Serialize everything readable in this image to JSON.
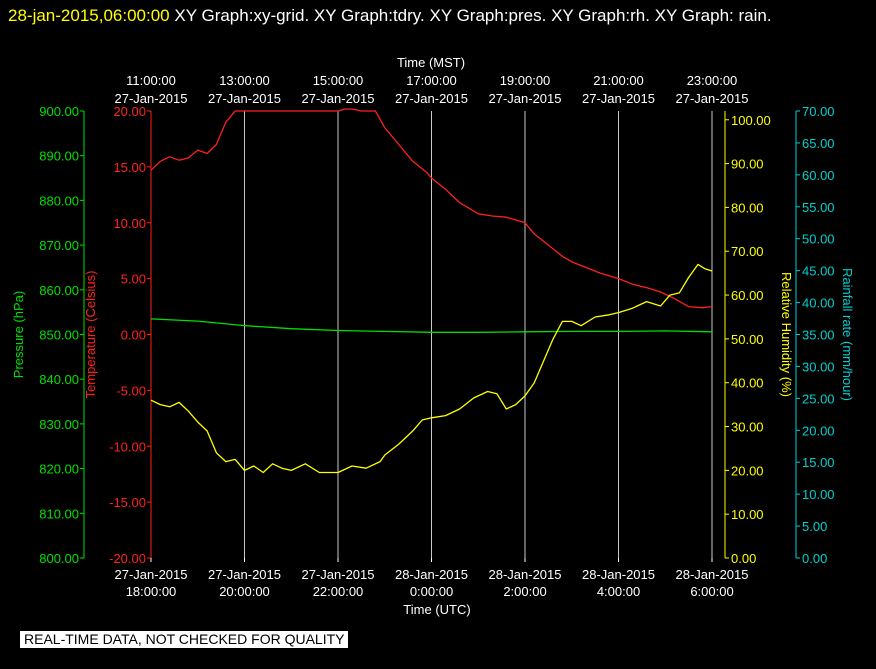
{
  "header": {
    "timestamp": "28-jan-2015,06:00:00",
    "graph_titles": "XY Graph:xy-grid.  XY Graph:tdry.  XY Graph:pres.  XY Graph:rh.  XY Graph: rain."
  },
  "footer": {
    "quality_notice": "REAL-TIME DATA, NOT CHECKED FOR QUALITY"
  },
  "colors": {
    "temperature": "#ff2020",
    "pressure": "#00e000",
    "humidity": "#ffff00",
    "rainfall": "#00d0d0",
    "grid": "#c8c8c8",
    "axis_text": "#ffffff"
  },
  "chart_data": {
    "type": "line",
    "top_axis": {
      "label": "Time (MST)",
      "ticks": [
        {
          "time": "11:00:00",
          "date": "27-Jan-2015"
        },
        {
          "time": "13:00:00",
          "date": "27-Jan-2015"
        },
        {
          "time": "15:00:00",
          "date": "27-Jan-2015"
        },
        {
          "time": "17:00:00",
          "date": "27-Jan-2015"
        },
        {
          "time": "19:00:00",
          "date": "27-Jan-2015"
        },
        {
          "time": "21:00:00",
          "date": "27-Jan-2015"
        },
        {
          "time": "23:00:00",
          "date": "27-Jan-2015"
        }
      ]
    },
    "bottom_axis": {
      "label": "Time (UTC)",
      "range_hours": [
        18,
        30
      ],
      "ticks": [
        {
          "date": "27-Jan-2015",
          "time": "18:00:00"
        },
        {
          "date": "27-Jan-2015",
          "time": "20:00:00"
        },
        {
          "date": "27-Jan-2015",
          "time": "22:00:00"
        },
        {
          "date": "28-Jan-2015",
          "time": "0:00:00"
        },
        {
          "date": "28-Jan-2015",
          "time": "2:00:00"
        },
        {
          "date": "28-Jan-2015",
          "time": "4:00:00"
        },
        {
          "date": "28-Jan-2015",
          "time": "6:00:00"
        }
      ]
    },
    "axes": {
      "pressure": {
        "label": "Pressure (hPa)",
        "range": [
          800,
          900
        ],
        "ticks": [
          "900.00",
          "890.00",
          "880.00",
          "870.00",
          "860.00",
          "850.00",
          "840.00",
          "830.00",
          "820.00",
          "810.00",
          "800.00"
        ]
      },
      "temperature": {
        "label": "Temperature (Celsius)",
        "range": [
          -20,
          20
        ],
        "ticks": [
          "20.00",
          "15.00",
          "10.00",
          "5.00",
          "0.00",
          "-5.00",
          "-10.00",
          "-15.00",
          "-20.00"
        ]
      },
      "humidity": {
        "label": "Relative Humidity (%)",
        "range": [
          0,
          102
        ],
        "ticks": [
          "100.00",
          "90.00",
          "80.00",
          "70.00",
          "60.00",
          "50.00",
          "40.00",
          "30.00",
          "20.00",
          "10.00",
          "0.00"
        ]
      },
      "rainfall": {
        "label": "Rainfall rate (mm/hour)",
        "range": [
          0,
          70
        ],
        "ticks": [
          "70.00",
          "65.00",
          "60.00",
          "55.00",
          "50.00",
          "45.00",
          "40.00",
          "35.00",
          "30.00",
          "25.00",
          "20.00",
          "15.00",
          "10.00",
          "5.00",
          "0.00"
        ]
      }
    },
    "series": [
      {
        "key": "temperature",
        "x_hours": [
          18.0,
          18.2,
          18.4,
          18.6,
          18.8,
          19.0,
          19.2,
          19.4,
          19.6,
          19.8,
          20.0,
          21.0,
          22.0,
          22.15,
          22.3,
          22.5,
          22.8,
          23.0,
          23.3,
          23.6,
          23.9,
          24.0,
          24.3,
          24.6,
          25.0,
          25.3,
          25.6,
          26.0,
          26.2,
          26.5,
          26.8,
          27.0,
          27.3,
          27.6,
          28.0,
          28.3,
          28.6,
          28.9,
          29.2,
          29.5,
          29.8,
          30.0
        ],
        "values": [
          14.7,
          15.5,
          15.9,
          15.6,
          15.8,
          16.5,
          16.2,
          17.0,
          19.0,
          20.0,
          20.0,
          20.0,
          20.0,
          20.4,
          20.4,
          20.0,
          20.0,
          18.5,
          17.0,
          15.5,
          14.5,
          14.0,
          13.0,
          11.8,
          10.8,
          10.6,
          10.5,
          10.0,
          9.0,
          8.0,
          7.0,
          6.5,
          6.0,
          5.5,
          5.0,
          4.5,
          4.2,
          3.8,
          3.2,
          2.5,
          2.4,
          2.5
        ]
      },
      {
        "key": "pressure",
        "x_hours": [
          18.0,
          19.0,
          20.0,
          21.0,
          22.0,
          23.0,
          24.0,
          25.0,
          26.0,
          27.0,
          28.0,
          29.0,
          30.0
        ],
        "values": [
          853.5,
          853.0,
          852.0,
          851.3,
          850.9,
          850.7,
          850.5,
          850.5,
          850.6,
          850.7,
          850.7,
          850.8,
          850.6
        ]
      },
      {
        "key": "humidity",
        "x_hours": [
          18.0,
          18.2,
          18.4,
          18.6,
          18.8,
          19.0,
          19.2,
          19.4,
          19.6,
          19.8,
          20.0,
          20.2,
          20.4,
          20.6,
          20.8,
          21.0,
          21.3,
          21.6,
          22.0,
          22.3,
          22.6,
          22.9,
          23.0,
          23.3,
          23.6,
          23.8,
          24.0,
          24.3,
          24.6,
          24.9,
          25.2,
          25.4,
          25.6,
          25.8,
          26.0,
          26.2,
          26.4,
          26.6,
          26.8,
          27.0,
          27.2,
          27.5,
          27.8,
          28.0,
          28.3,
          28.6,
          28.9,
          29.1,
          29.3,
          29.5,
          29.7,
          29.85,
          30.0
        ],
        "values": [
          36.0,
          35.0,
          34.5,
          35.5,
          33.5,
          31.0,
          29.0,
          24.0,
          22.0,
          22.5,
          20.0,
          21.0,
          19.5,
          21.5,
          20.5,
          20.0,
          21.5,
          19.5,
          19.5,
          21.0,
          20.5,
          22.0,
          23.5,
          26.0,
          29.0,
          31.5,
          32.0,
          32.5,
          34.0,
          36.5,
          38.0,
          37.5,
          34.0,
          35.0,
          37.0,
          40.0,
          45.0,
          50.0,
          54.0,
          54.0,
          53.0,
          55.0,
          55.5,
          56.0,
          57.0,
          58.5,
          57.5,
          60.0,
          60.5,
          64.0,
          67.0,
          66.0,
          65.5
        ]
      }
    ]
  }
}
